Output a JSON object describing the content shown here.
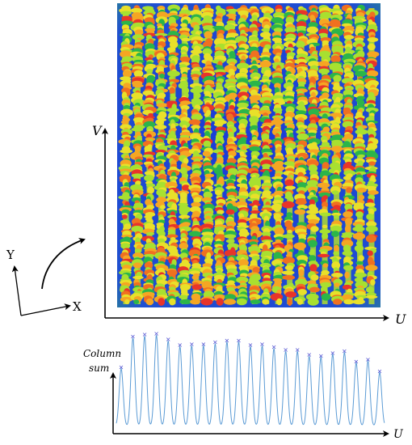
{
  "field_image": {
    "row_count": 22,
    "background_color": "#1838d8",
    "crop_colors": [
      "#2bb54a",
      "#a8e030",
      "#e8e02a",
      "#f5a623",
      "#f07020",
      "#e8342a"
    ]
  },
  "axes": {
    "v_label": "V",
    "u_label": "U",
    "y_label": "Y",
    "x_label": "X"
  },
  "profile": {
    "y_label_line1": "Column",
    "y_label_line2": "sum",
    "x_label": "U",
    "line_color": "#5b9bd5",
    "marker_color": "#4a4ad0",
    "marker_symbol": "×"
  },
  "chart_data": {
    "type": "line",
    "title": "",
    "xlabel": "U",
    "ylabel": "Column sum",
    "series": [
      {
        "peak_values": [
          0.6,
          0.92,
          0.94,
          0.95,
          0.89,
          0.83,
          0.84,
          0.84,
          0.86,
          0.88,
          0.88,
          0.83,
          0.84,
          0.81,
          0.78,
          0.78,
          0.73,
          0.72,
          0.75,
          0.77,
          0.66,
          0.68,
          0.56
        ]
      }
    ]
  }
}
